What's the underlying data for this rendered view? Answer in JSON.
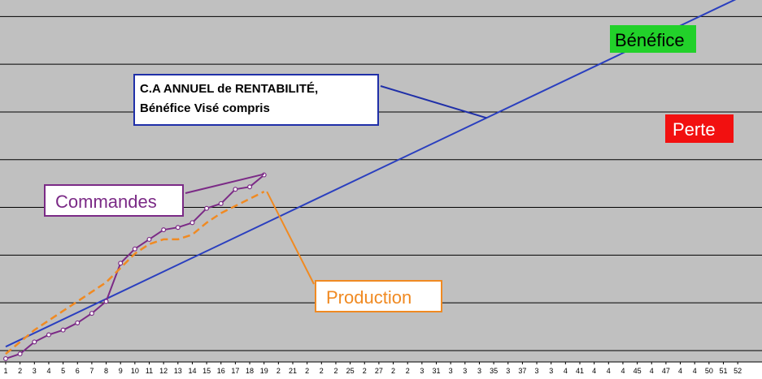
{
  "chart_data": {
    "type": "line",
    "title": "",
    "xlabel": "",
    "ylabel": "",
    "grid": true,
    "x_tick_labels": [
      "1",
      "2",
      "3",
      "4",
      "5",
      "6",
      "7",
      "8",
      "9",
      "10",
      "11",
      "12",
      "13",
      "14",
      "15",
      "16",
      "17",
      "18",
      "19",
      "2",
      "21",
      "2",
      "2",
      "2",
      "25",
      "2",
      "27",
      "2",
      "2",
      "3",
      "31",
      "3",
      "3",
      "3",
      "35",
      "3",
      "37",
      "3",
      "3",
      "4",
      "41",
      "4",
      "4",
      "4",
      "45",
      "4",
      "47",
      "4",
      "4",
      "50",
      "51",
      "52"
    ],
    "series": [
      {
        "name": "C.A ANNUEL de RENTABILITÉ, Bénéfice Visé compris",
        "color": "#2a3fbf",
        "x": [
          1,
          52
        ],
        "y": [
          0.2,
          7.5
        ]
      },
      {
        "name": "Commandes",
        "color": "#7b2a86",
        "x": [
          1,
          2,
          3,
          4,
          5,
          6,
          7,
          8,
          9,
          10,
          11,
          12,
          13,
          14,
          15,
          16,
          17,
          18,
          19
        ],
        "y": [
          -0.05,
          0.05,
          0.3,
          0.45,
          0.55,
          0.7,
          0.9,
          1.15,
          1.95,
          2.25,
          2.45,
          2.65,
          2.7,
          2.8,
          3.1,
          3.2,
          3.5,
          3.55,
          3.8
        ]
      },
      {
        "name": "Production",
        "color": "#f08a22",
        "dashed": true,
        "x": [
          1,
          2,
          3,
          4,
          5,
          6,
          7,
          8,
          9,
          10,
          11,
          12,
          13,
          14,
          15,
          16,
          17,
          18,
          19
        ],
        "y": [
          0.05,
          0.3,
          0.55,
          0.75,
          0.95,
          1.15,
          1.35,
          1.55,
          1.85,
          2.15,
          2.35,
          2.45,
          2.45,
          2.55,
          2.8,
          3.0,
          3.15,
          3.3,
          3.45
        ]
      }
    ],
    "annotations": {
      "breakeven": {
        "line1": "C.A ANNUEL de RENTABILITÉ,",
        "line2": "Bénéfice Visé compris",
        "border": "#1f2fa8"
      },
      "commandes": {
        "text": "Commandes",
        "border": "#7b2a86",
        "color": "#7b2a86"
      },
      "production": {
        "text": "Production",
        "border": "#f08a22",
        "color": "#f08a22"
      },
      "benefice": {
        "text": "Bénéfice",
        "bg": "#22d12a"
      },
      "perte": {
        "text": "Perte",
        "bg": "#f21010",
        "color": "#ffffff"
      }
    },
    "colors": {
      "plot_bg": "#c0c0c0",
      "gridline": "#000000"
    }
  }
}
